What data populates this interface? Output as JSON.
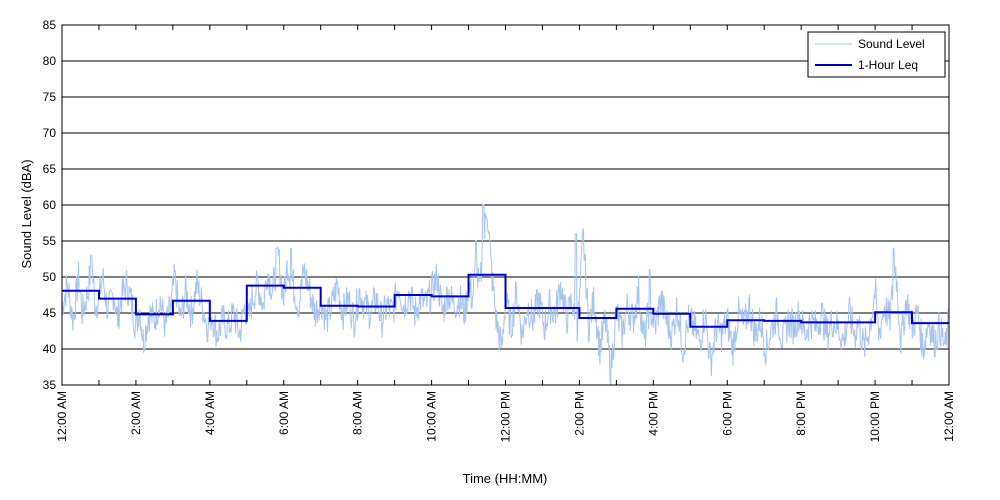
{
  "chart_data": {
    "type": "line",
    "xlabel": "Time (HH:MM)",
    "ylabel": "Sound Level (dBA)",
    "ylim": [
      35,
      85
    ],
    "yticks": [
      35,
      40,
      45,
      50,
      55,
      60,
      65,
      70,
      75,
      80,
      85
    ],
    "xlim_hours": [
      0,
      24
    ],
    "xtick_hours": [
      0,
      2,
      4,
      6,
      8,
      10,
      12,
      14,
      16,
      18,
      20,
      22,
      24
    ],
    "xtick_labels": [
      "12:00 AM",
      "2:00 AM",
      "4:00 AM",
      "6:00 AM",
      "8:00 AM",
      "10:00 AM",
      "12:00 PM",
      "2:00 PM",
      "4:00 PM",
      "6:00 PM",
      "8:00 PM",
      "10:00 PM",
      "12:00 AM"
    ],
    "grid": "horizontal",
    "legend_position": "top-right",
    "series": [
      {
        "name": "Sound Level",
        "color": "#a8c4f0",
        "x_hours": [
          0.0,
          0.15,
          0.3,
          0.45,
          0.55,
          0.7,
          0.8,
          0.9,
          1.0,
          1.1,
          1.25,
          1.4,
          1.5,
          1.6,
          1.75,
          1.9,
          2.0,
          2.1,
          2.2,
          2.35,
          2.5,
          2.65,
          2.8,
          2.95,
          3.05,
          3.2,
          3.35,
          3.5,
          3.65,
          3.8,
          3.95,
          4.05,
          4.2,
          4.35,
          4.5,
          4.65,
          4.8,
          4.95,
          5.05,
          5.15,
          5.3,
          5.45,
          5.55,
          5.7,
          5.85,
          6.0,
          6.1,
          6.25,
          6.4,
          6.55,
          6.7,
          6.85,
          7.0,
          7.15,
          7.3,
          7.45,
          7.6,
          7.75,
          7.9,
          8.05,
          8.2,
          8.35,
          8.5,
          8.65,
          8.8,
          8.95,
          9.1,
          9.25,
          9.4,
          9.55,
          9.7,
          9.85,
          10.0,
          10.15,
          10.3,
          10.45,
          10.6,
          10.75,
          10.9,
          11.0,
          11.1,
          11.2,
          11.3,
          11.4,
          11.5,
          11.6,
          11.75,
          11.9,
          12.0,
          12.15,
          12.3,
          12.45,
          12.6,
          12.75,
          12.9,
          13.05,
          13.2,
          13.35,
          13.5,
          13.65,
          13.8,
          13.9,
          14.0,
          14.1,
          14.25,
          14.4,
          14.55,
          14.7,
          14.85,
          15.0,
          15.15,
          15.3,
          15.45,
          15.6,
          15.75,
          15.9,
          16.05,
          16.2,
          16.35,
          16.5,
          16.65,
          16.8,
          16.95,
          17.1,
          17.25,
          17.4,
          17.55,
          17.7,
          17.85,
          18.0,
          18.15,
          18.3,
          18.45,
          18.6,
          18.75,
          18.9,
          19.05,
          19.2,
          19.35,
          19.5,
          19.65,
          19.8,
          19.95,
          20.1,
          20.25,
          20.4,
          20.55,
          20.7,
          20.85,
          21.0,
          21.15,
          21.3,
          21.45,
          21.55,
          21.7,
          21.85,
          22.0,
          22.1,
          22.25,
          22.4,
          22.55,
          22.7,
          22.85,
          23.0,
          23.15,
          23.3,
          23.45,
          23.6,
          23.75,
          23.9,
          24.0
        ],
        "values": [
          46,
          49,
          44,
          50,
          45,
          48,
          52,
          46,
          47,
          50,
          45,
          48,
          44,
          47,
          49,
          46,
          43,
          46,
          41,
          45,
          44,
          47,
          43,
          46,
          50,
          44,
          48,
          45,
          49,
          46,
          43,
          45,
          42,
          44,
          43,
          45,
          42,
          46,
          44,
          47,
          49,
          46,
          51,
          48,
          53,
          47,
          52,
          49,
          46,
          51,
          48,
          45,
          47,
          44,
          46,
          49,
          45,
          47,
          44,
          48,
          46,
          45,
          47,
          44,
          46,
          45,
          49,
          46,
          48,
          45,
          47,
          46,
          48,
          50,
          45,
          48,
          46,
          47,
          45,
          49,
          47,
          51,
          48,
          54,
          60,
          52,
          44,
          40,
          47,
          43,
          48,
          42,
          46,
          44,
          47,
          43,
          46,
          45,
          49,
          44,
          47,
          42,
          46,
          56,
          43,
          47,
          40,
          44,
          37,
          45,
          42,
          46,
          44,
          48,
          41,
          46,
          43,
          47,
          44,
          42,
          46,
          40,
          44,
          43,
          41,
          45,
          38,
          43,
          42,
          44,
          40,
          45,
          43,
          46,
          42,
          44,
          40,
          43,
          45,
          41,
          44,
          43,
          45,
          42,
          44,
          43,
          45,
          42,
          44,
          43,
          41,
          45,
          42,
          44,
          40,
          43,
          48,
          42,
          46,
          44,
          52,
          41,
          47,
          43,
          45,
          40,
          44,
          41,
          43,
          40,
          44
        ],
        "peaks_hours": [
          0.8,
          5.8,
          6.2,
          11.2,
          11.4,
          13.9,
          15.9,
          22.5
        ],
        "peaks_values": [
          53,
          54,
          54,
          55,
          60,
          56,
          51,
          54
        ]
      },
      {
        "name": "1-Hour Leq",
        "color": "#0000cc",
        "step": true,
        "x_hours": [
          0,
          1,
          2,
          3,
          4,
          5,
          6,
          7,
          8,
          9,
          10,
          11,
          12,
          13,
          14,
          15,
          16,
          17,
          18,
          19,
          20,
          21,
          22,
          23
        ],
        "values": [
          48.1,
          47.0,
          44.8,
          46.7,
          43.9,
          48.8,
          48.5,
          46.0,
          45.9,
          47.5,
          47.3,
          50.3,
          45.7,
          45.7,
          44.3,
          45.6,
          44.9,
          43.1,
          44.0,
          43.9,
          43.7,
          43.7,
          45.1,
          43.6
        ]
      }
    ]
  }
}
